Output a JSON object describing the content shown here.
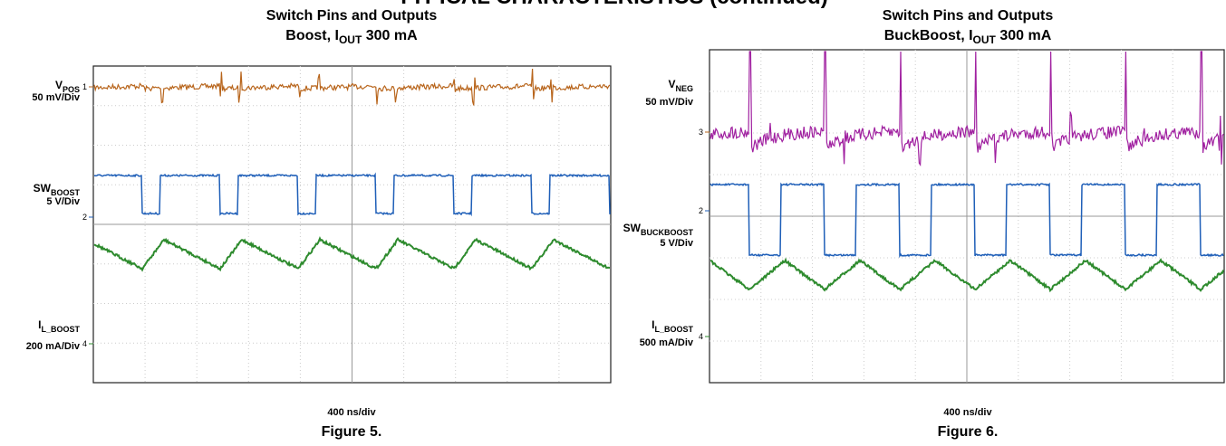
{
  "header": "TYPICAL CHARACTERISTICS (continued)",
  "figures": [
    {
      "title_line1": "Switch Pins and Outputs",
      "title_line2": [
        "Boost, I",
        "OUT",
        " 300 mA"
      ],
      "channels": [
        {
          "label": [
            "V",
            "POS"
          ],
          "scale": "50 mV/Div",
          "marker": "1"
        },
        {
          "label": [
            "SW",
            "BOOST"
          ],
          "scale": "5 V/Div",
          "marker": "2"
        },
        {
          "label": [
            "I",
            "L_BOOST"
          ],
          "scale": "200 mA/Div",
          "marker": "4"
        }
      ],
      "timebase": "400 ns/div",
      "caption": "Figure 5."
    },
    {
      "title_line1": "Switch Pins and Outputs",
      "title_line2": [
        "BuckBoost, I",
        "OUT",
        " 300 mA"
      ],
      "channels": [
        {
          "label": [
            "V",
            "NEG"
          ],
          "scale": "50 mV/Div",
          "marker": "3"
        },
        {
          "label": [
            "SW",
            "BUCKBOOST"
          ],
          "scale": "5 V/Div",
          "marker": "2"
        },
        {
          "label": [
            "I",
            "L_BOOST"
          ],
          "scale": "500 mA/Div",
          "marker": "4"
        }
      ],
      "timebase": "400 ns/div",
      "caption": "Figure 6."
    }
  ]
}
